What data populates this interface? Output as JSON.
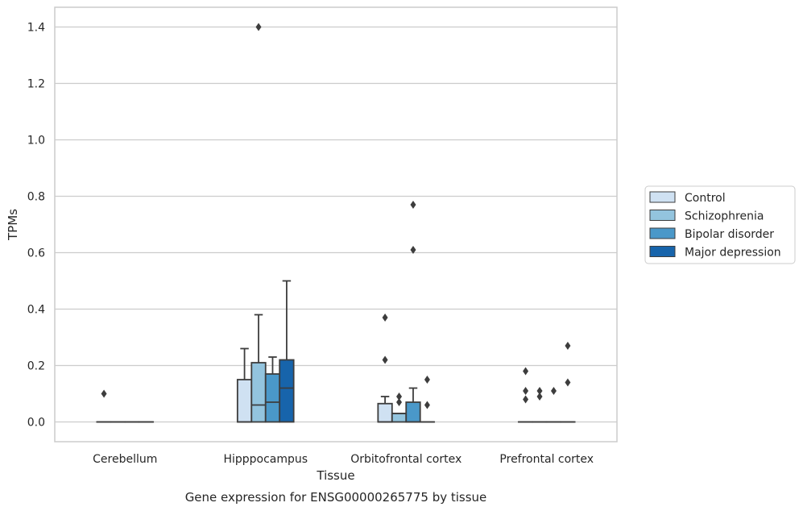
{
  "chart_data": {
    "type": "boxplot",
    "caption": "Gene expression for ENSG00000265775 by tissue",
    "xlabel": "Tissue",
    "ylabel": "TPMs",
    "ylim": [
      -0.07,
      1.47
    ],
    "yticks": [
      0.0,
      0.2,
      0.4,
      0.6,
      0.8,
      1.0,
      1.2,
      1.4
    ],
    "ytick_labels": [
      "0.0",
      "0.2",
      "0.4",
      "0.6",
      "0.8",
      "1.0",
      "1.2",
      "1.4"
    ],
    "grid": "horizontal",
    "legend_position": "right",
    "categories": [
      "Cerebellum",
      "Hipppocampus",
      "Orbitofrontal cortex",
      "Prefrontal cortex"
    ],
    "series": [
      {
        "name": "Control",
        "color": "#cfe1f2",
        "boxes": [
          {
            "q1": 0,
            "median": 0,
            "q3": 0,
            "whislo": 0,
            "whishi": 0,
            "fliers": [
              0.1
            ]
          },
          {
            "q1": 0,
            "median": 0,
            "q3": 0.15,
            "whislo": 0,
            "whishi": 0.26,
            "fliers": []
          },
          {
            "q1": 0,
            "median": 0,
            "q3": 0.065,
            "whislo": 0,
            "whishi": 0.09,
            "fliers": [
              0.22,
              0.37
            ]
          },
          {
            "q1": 0,
            "median": 0,
            "q3": 0,
            "whislo": 0,
            "whishi": 0,
            "fliers": [
              0.08,
              0.11,
              0.18
            ]
          }
        ]
      },
      {
        "name": "Schizophrenia",
        "color": "#93c4de",
        "boxes": [
          {
            "q1": 0,
            "median": 0,
            "q3": 0,
            "whislo": 0,
            "whishi": 0,
            "fliers": []
          },
          {
            "q1": 0,
            "median": 0.06,
            "q3": 0.21,
            "whislo": 0,
            "whishi": 0.38,
            "fliers": [
              1.4
            ]
          },
          {
            "q1": 0,
            "median": 0.03,
            "q3": 0.03,
            "whislo": 0,
            "whishi": 0.03,
            "fliers": [
              0.07,
              0.09
            ]
          },
          {
            "q1": 0,
            "median": 0,
            "q3": 0,
            "whislo": 0,
            "whishi": 0,
            "fliers": [
              0.09,
              0.11
            ]
          }
        ]
      },
      {
        "name": "Bipolar disorder",
        "color": "#4a98c9",
        "boxes": [
          {
            "q1": 0,
            "median": 0,
            "q3": 0,
            "whislo": 0,
            "whishi": 0,
            "fliers": []
          },
          {
            "q1": 0,
            "median": 0.07,
            "q3": 0.17,
            "whislo": 0,
            "whishi": 0.23,
            "fliers": []
          },
          {
            "q1": 0,
            "median": 0,
            "q3": 0.07,
            "whislo": 0,
            "whishi": 0.12,
            "fliers": [
              0.61,
              0.77
            ]
          },
          {
            "q1": 0,
            "median": 0,
            "q3": 0,
            "whislo": 0,
            "whishi": 0,
            "fliers": [
              0.11
            ]
          }
        ]
      },
      {
        "name": "Major depression",
        "color": "#1764ab",
        "boxes": [
          {
            "q1": 0,
            "median": 0,
            "q3": 0,
            "whislo": 0,
            "whishi": 0,
            "fliers": []
          },
          {
            "q1": 0,
            "median": 0.12,
            "q3": 0.22,
            "whislo": 0,
            "whishi": 0.5,
            "fliers": []
          },
          {
            "q1": 0,
            "median": 0,
            "q3": 0,
            "whislo": 0,
            "whishi": 0,
            "fliers": [
              0.06,
              0.15
            ]
          },
          {
            "q1": 0,
            "median": 0,
            "q3": 0,
            "whislo": 0,
            "whishi": 0,
            "fliers": [
              0.14,
              0.27
            ]
          }
        ]
      }
    ]
  }
}
